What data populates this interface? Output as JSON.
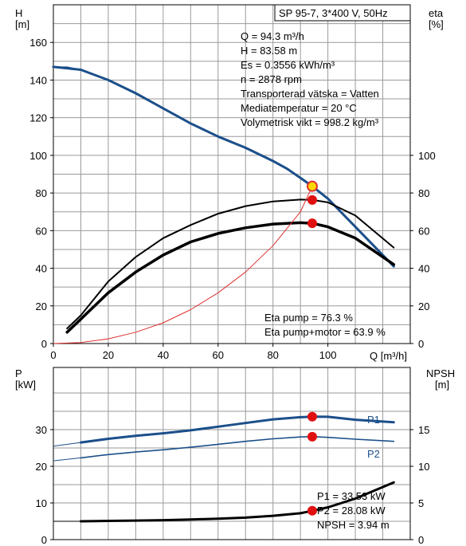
{
  "chart_data": [
    {
      "type": "line",
      "title": "SP 95-7, 3*400 V, 50Hz",
      "xlabel": "Q [m³/h]",
      "ylabel_left": [
        "H",
        "[m]"
      ],
      "ylabel_right": [
        "eta",
        "[%]"
      ],
      "xlim": [
        0,
        130
      ],
      "ylim_left": [
        0,
        180
      ],
      "ylim_right": [
        0,
        180
      ],
      "x_ticks": [
        "0",
        "20",
        "40",
        "60",
        "80",
        "100"
      ],
      "y_ticks_left": [
        "0",
        "20",
        "40",
        "60",
        "80",
        "100",
        "120",
        "140",
        "160"
      ],
      "y_ticks_right": [
        "0",
        "20",
        "40",
        "60",
        "80",
        "100"
      ],
      "grid": true,
      "info_lines": [
        "Q = 94.3 m³/h",
        "H = 83.58 m",
        "Es = 0.3556 kWh/m³",
        "n = 2878 rpm",
        "Transporterad vätska = Vatten",
        "Mediatemperatur = 20 °C",
        "Volymetrisk vikt = 998.2 kg/m³"
      ],
      "annotations": [
        "Eta pump = 76.3 %",
        "Eta pump+motor = 63.9 %"
      ],
      "series": [
        {
          "axis": "left",
          "color": "#1b4f8a",
          "x": [
            0,
            10,
            20,
            30,
            40,
            50,
            60,
            70,
            80,
            85,
            90,
            94.3,
            100,
            110,
            124
          ],
          "y": [
            147,
            145.5,
            140,
            133,
            125,
            117,
            110,
            104,
            97,
            93,
            88,
            83.58,
            77,
            62,
            41
          ]
        },
        {
          "axis": "left",
          "color": "#1b4f8a",
          "dashed": true,
          "x": [
            0,
            5,
            10
          ],
          "y": [
            147,
            147,
            145.5
          ]
        },
        {
          "axis": "right",
          "color": "#000000",
          "x": [
            5,
            10,
            20,
            30,
            40,
            50,
            60,
            70,
            80,
            90,
            94.3,
            100,
            110,
            124
          ],
          "y": [
            8,
            15,
            33,
            46,
            56,
            63,
            69,
            73,
            75.5,
            76.5,
            76.3,
            75,
            68,
            51
          ]
        },
        {
          "axis": "right",
          "color": "#000000",
          "bold": true,
          "x": [
            5,
            10,
            20,
            30,
            40,
            50,
            60,
            70,
            80,
            90,
            94.3,
            100,
            110,
            124
          ],
          "y": [
            6,
            13,
            27,
            38,
            47,
            54,
            58.5,
            61.5,
            63.5,
            64.2,
            63.9,
            62,
            56,
            42
          ]
        },
        {
          "axis": "left",
          "color": "#e03030",
          "thin": true,
          "x": [
            0,
            10,
            20,
            30,
            40,
            50,
            60,
            70,
            80,
            90,
            94.3
          ],
          "y": [
            0,
            0.5,
            2.5,
            6,
            11,
            18,
            27,
            38,
            52,
            70,
            83.58
          ]
        }
      ],
      "markers": [
        {
          "x": 94.3,
          "y": 83.58,
          "fill": "#ffd700",
          "stroke": "#e03030"
        },
        {
          "x": 94.3,
          "y": 76.3,
          "fill": "#e01010"
        },
        {
          "x": 94.3,
          "y": 63.9,
          "fill": "#e01010"
        }
      ]
    },
    {
      "type": "line",
      "ylabel_left": [
        "P",
        "[kW]"
      ],
      "ylabel_right": [
        "NPSH",
        "[m]"
      ],
      "xlim": [
        0,
        130
      ],
      "ylim_left": [
        0,
        40
      ],
      "ylim_right": [
        0,
        20
      ],
      "y_ticks_left": [
        "0",
        "10",
        "20",
        "30"
      ],
      "y_ticks_right": [
        "0",
        "5",
        "10",
        "15"
      ],
      "grid": true,
      "annotations": [
        "P1 = 33.53 kW",
        "P2 = 28.08 kW",
        "NPSH = 3.94 m"
      ],
      "series": [
        {
          "name": "P1",
          "axis": "left",
          "color": "#1b4f8a",
          "bold": true,
          "x": [
            10,
            20,
            30,
            40,
            50,
            60,
            70,
            80,
            90,
            94.3,
            100,
            110,
            124
          ],
          "y": [
            26.5,
            27.5,
            28.3,
            29,
            29.8,
            30.8,
            31.8,
            32.8,
            33.4,
            33.53,
            33.5,
            32.7,
            32.0
          ]
        },
        {
          "name": "P2",
          "axis": "left",
          "color": "#1b4f8a",
          "x": [
            10,
            20,
            30,
            40,
            50,
            60,
            70,
            80,
            90,
            94.3,
            100,
            110,
            124
          ],
          "y": [
            22.3,
            23.2,
            23.9,
            24.5,
            25.2,
            26,
            26.8,
            27.5,
            28.0,
            28.08,
            27.9,
            27.4,
            26.8
          ]
        },
        {
          "name": "NPSH",
          "axis": "right",
          "color": "#000000",
          "bold": true,
          "x": [
            10,
            20,
            30,
            40,
            50,
            60,
            70,
            80,
            90,
            94.3,
            100,
            110,
            124
          ],
          "y": [
            2.5,
            2.55,
            2.6,
            2.65,
            2.75,
            2.85,
            3.0,
            3.25,
            3.6,
            3.94,
            4.4,
            5.6,
            7.8
          ]
        }
      ],
      "extensions": [
        {
          "axis": "left",
          "color": "#1b4f8a",
          "x": [
            0,
            10
          ],
          "y": [
            25.5,
            26.5
          ]
        },
        {
          "axis": "left",
          "color": "#1b4f8a",
          "x": [
            0,
            10
          ],
          "y": [
            21.5,
            22.3
          ]
        },
        {
          "axis": "right",
          "color": "#000000",
          "x": [
            0,
            10
          ],
          "y": [
            2.5,
            2.5
          ]
        }
      ],
      "markers": [
        {
          "x": 94.3,
          "y": 33.53,
          "axis": "left",
          "fill": "#e01010"
        },
        {
          "x": 94.3,
          "y": 28.08,
          "axis": "left",
          "fill": "#e01010"
        },
        {
          "x": 94.3,
          "y": 3.94,
          "axis": "right",
          "fill": "#e01010"
        }
      ]
    }
  ]
}
